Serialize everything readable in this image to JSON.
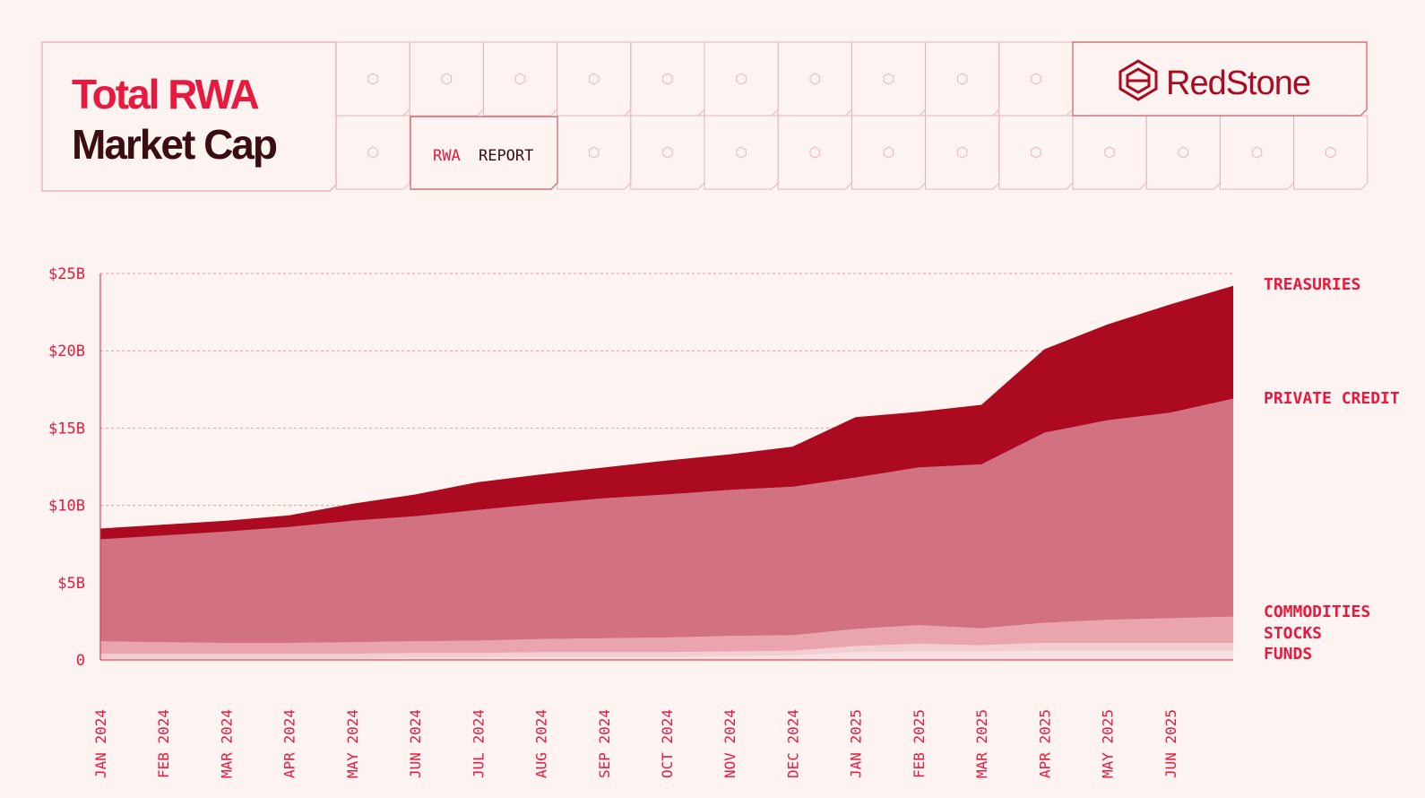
{
  "header": {
    "title_line1": "Total RWA",
    "title_line2": "Market Cap",
    "report_prefix": "RWA",
    "report_suffix": "REPORT",
    "logo_text": "RedStone"
  },
  "colors": {
    "background": "#fdf3f1",
    "accent": "#e8193f",
    "title_dark": "#3a0d14",
    "grid": "#e89aa4",
    "cell_border": "#e8b3ba",
    "treasuries": "#ab0a20",
    "private_credit": "#d27280",
    "commodities": "#eaa4ae",
    "stocks": "#f2cdd2",
    "funds": "#f7dfe2"
  },
  "chart_data": {
    "type": "area",
    "stacked": true,
    "x": [
      "2024-01",
      "2024-02",
      "2024-03",
      "2024-04",
      "2024-05",
      "2024-06",
      "2024-07",
      "2024-08",
      "2024-09",
      "2024-10",
      "2024-11",
      "2024-12",
      "2025-01",
      "2025-02",
      "2025-03",
      "2025-04",
      "2025-05",
      "2025-06",
      "2025-06-30"
    ],
    "x_tick_labels": [
      "JAN 2024",
      "FEB 2024",
      "MAR 2024",
      "APR 2024",
      "MAY 2024",
      "JUN 2024",
      "JUL 2024",
      "AUG 2024",
      "SEP 2024",
      "OCT 2024",
      "NOV 2024",
      "DEC 2024",
      "JAN 2025",
      "FEB 2025",
      "MAR 2025",
      "APR 2025",
      "MAY 2025",
      "JUN 2025"
    ],
    "y_ticks": [
      {
        "value": 0,
        "label": "0"
      },
      {
        "value": 5,
        "label": "$5B"
      },
      {
        "value": 10,
        "label": "$10B"
      },
      {
        "value": 15,
        "label": "$15B"
      },
      {
        "value": 20,
        "label": "$20B"
      },
      {
        "value": 25,
        "label": "$25B"
      }
    ],
    "ylim": [
      0,
      25
    ],
    "unit": "$B",
    "grid": true,
    "series": [
      {
        "name": "FUNDS",
        "values": [
          0.1,
          0.1,
          0.1,
          0.1,
          0.1,
          0.15,
          0.15,
          0.2,
          0.2,
          0.2,
          0.25,
          0.3,
          0.5,
          0.55,
          0.55,
          0.6,
          0.6,
          0.6,
          0.6
        ]
      },
      {
        "name": "STOCKS",
        "values": [
          0.3,
          0.3,
          0.3,
          0.3,
          0.3,
          0.3,
          0.3,
          0.3,
          0.3,
          0.3,
          0.3,
          0.3,
          0.4,
          0.5,
          0.4,
          0.5,
          0.5,
          0.5,
          0.5
        ]
      },
      {
        "name": "COMMODITIES",
        "values": [
          0.8,
          0.75,
          0.7,
          0.7,
          0.75,
          0.75,
          0.8,
          0.85,
          0.9,
          0.95,
          1.0,
          1.0,
          1.1,
          1.2,
          1.1,
          1.3,
          1.5,
          1.6,
          1.7
        ]
      },
      {
        "name": "PRIVATE CREDIT",
        "values": [
          6.6,
          6.9,
          7.2,
          7.5,
          7.85,
          8.1,
          8.45,
          8.75,
          9.05,
          9.25,
          9.45,
          9.6,
          9.8,
          10.2,
          10.6,
          12.3,
          12.9,
          13.3,
          14.1
        ]
      },
      {
        "name": "TREASURIES",
        "values": [
          0.7,
          0.7,
          0.7,
          0.75,
          1.1,
          1.4,
          1.8,
          1.9,
          2.0,
          2.2,
          2.3,
          2.6,
          3.9,
          3.6,
          3.85,
          5.4,
          6.2,
          7.0,
          7.3
        ]
      }
    ]
  }
}
